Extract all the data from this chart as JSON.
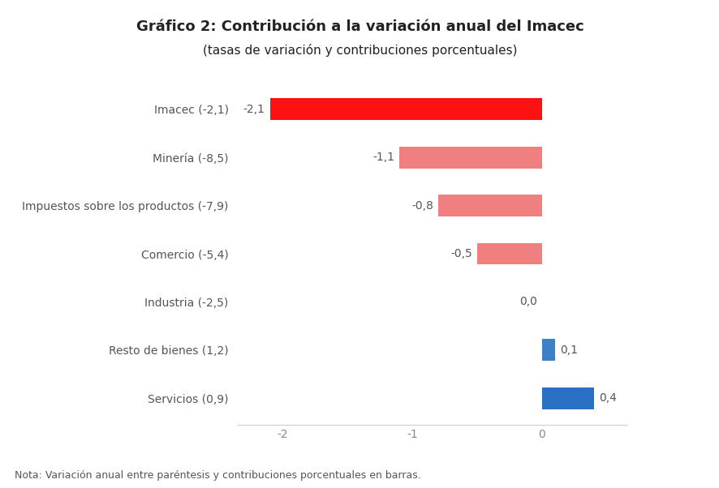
{
  "title_line1": "Gráfico 2: Contribución a la variación anual del Imacec",
  "title_line2": "(tasas de variación y contribuciones porcentuales)",
  "categories": [
    "Servicios (0,9)",
    "Resto de bienes (1,2)",
    "Industria (-2,5)",
    "Comercio (-5,4)",
    "Impuestos sobre los productos (-7,9)",
    "Minería (-8,5)",
    "Imacec (-2,1)"
  ],
  "values": [
    0.4,
    0.1,
    0.0,
    -0.5,
    -0.8,
    -1.1,
    -2.1
  ],
  "bar_colors": [
    "#2970C5",
    "#3B80C8",
    "#F08080",
    "#F08080",
    "#F08080",
    "#F08080",
    "#FF1111"
  ],
  "value_labels": [
    "0,4",
    "0,1",
    "0,0",
    "-0,5",
    "-0,8",
    "-1,1",
    "-2,1"
  ],
  "xlim": [
    -2.35,
    0.65
  ],
  "xticks": [
    -2,
    -1,
    0
  ],
  "xtick_labels": [
    "-2",
    "-1",
    "0"
  ],
  "note": "Nota: Variación anual entre paréntesis y contribuciones porcentuales en barras.",
  "background_color": "#ffffff",
  "label_fontsize": 10,
  "title_fontsize": 13,
  "subtitle_fontsize": 11,
  "note_fontsize": 9,
  "value_label_fontsize": 10,
  "bar_height": 0.45
}
